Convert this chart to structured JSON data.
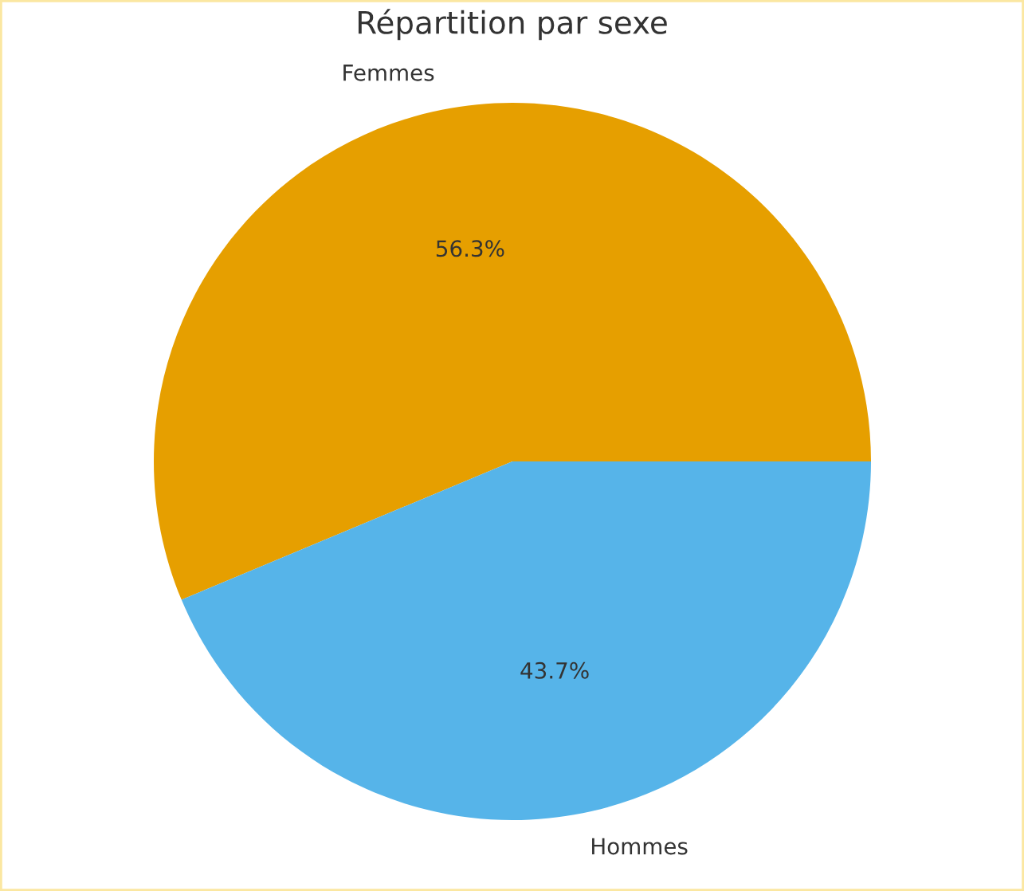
{
  "chart_data": {
    "type": "pie",
    "title": "Répartition par sexe",
    "categories": [
      "Femmes",
      "Hommes"
    ],
    "values": [
      56.3,
      43.7
    ],
    "colors": [
      "#e69f00",
      "#56b4e9"
    ],
    "value_labels": [
      "56.3%",
      "43.7%"
    ]
  }
}
